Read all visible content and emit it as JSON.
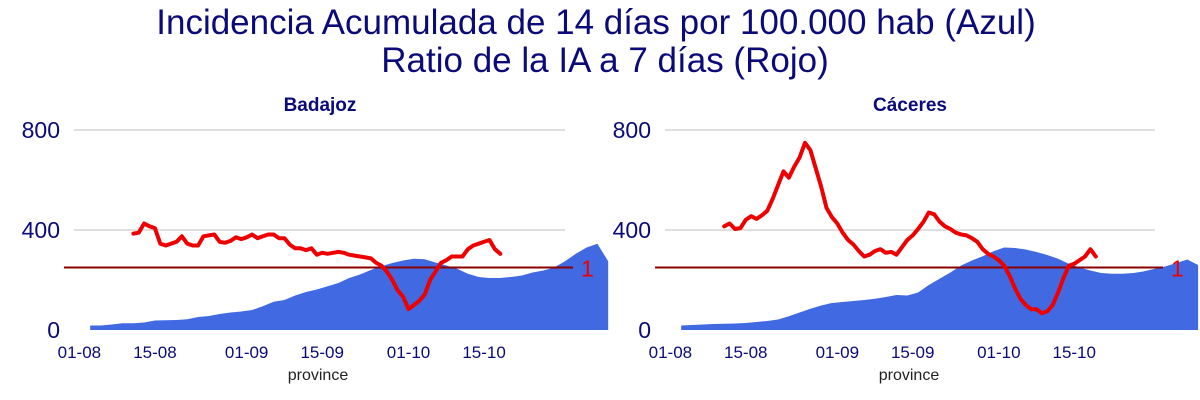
{
  "title_lines": [
    "Incidencia Acumulada de 14 días por 100.000 hab (Azul)",
    "Ratio de la IA a 7 días (Rojo)"
  ],
  "colors": {
    "title": "#0a0a78",
    "area": "#4169e1",
    "ratio": "#ee0000",
    "reference": "#8b0000",
    "grid": "#cccccc",
    "ref_label": "#ee0000"
  },
  "chart_data": [
    {
      "type": "area",
      "title": "Badajoz",
      "xlabel": "province",
      "x_start": "2020-08-03",
      "x_step_days": 2,
      "x_ticks": [
        {
          "date": "2020-08-01",
          "label": "01-08"
        },
        {
          "date": "2020-08-15",
          "label": "15-08"
        },
        {
          "date": "2020-09-01",
          "label": "01-09"
        },
        {
          "date": "2020-09-15",
          "label": "15-09"
        },
        {
          "date": "2020-10-01",
          "label": "01-10"
        },
        {
          "date": "2020-10-15",
          "label": "15-10"
        }
      ],
      "y_ticks": [
        0,
        400,
        800
      ],
      "ylim": [
        0,
        800
      ],
      "reference_line": {
        "value": 250,
        "label": "1"
      },
      "series": [
        {
          "name": "Incidencia Acumulada de 14 días por 100.000 hab",
          "kind": "area",
          "x_start": "2020-08-03",
          "values": [
            18,
            18,
            22,
            27,
            27,
            30,
            38,
            39,
            40,
            43,
            52,
            56,
            64,
            70,
            74,
            80,
            95,
            113,
            120,
            138,
            152,
            162,
            175,
            188,
            208,
            222,
            240,
            255,
            268,
            278,
            285,
            283,
            270,
            258,
            245,
            225,
            212,
            208,
            208,
            212,
            218,
            230,
            238,
            250,
            275,
            305,
            330,
            345,
            275
          ]
        },
        {
          "name": "Ratio de la IA a 7 días",
          "kind": "line",
          "x_start": "2020-08-11",
          "values": [
            1.37,
            1.38,
            1.48,
            1.45,
            1.43,
            1.26,
            1.24,
            1.26,
            1.28,
            1.34,
            1.26,
            1.24,
            1.24,
            1.34,
            1.35,
            1.36,
            1.28,
            1.27,
            1.29,
            1.33,
            1.31,
            1.33,
            1.36,
            1.32,
            1.34,
            1.36,
            1.36,
            1.32,
            1.32,
            1.25,
            1.21,
            1.21,
            1.19,
            1.21,
            1.14,
            1.16,
            1.15,
            1.16,
            1.17,
            1.16,
            1.14,
            1.13,
            1.12,
            1.11,
            1.1,
            1.05,
            1.02,
            0.98,
            0.94,
            0.89,
            0.86,
            0.8,
            0.82,
            0.84,
            0.87,
            0.94,
            0.98,
            1.05,
            1.08,
            1.12,
            1.12,
            1.12,
            1.2,
            1.24,
            1.26,
            1.28,
            1.3,
            1.2,
            1.15
          ]
        }
      ]
    },
    {
      "type": "area",
      "title": "Cáceres",
      "xlabel": "province",
      "x_start": "2020-08-03",
      "x_step_days": 2,
      "x_ticks": [
        {
          "date": "2020-08-01",
          "label": "01-08"
        },
        {
          "date": "2020-08-15",
          "label": "15-08"
        },
        {
          "date": "2020-09-01",
          "label": "01-09"
        },
        {
          "date": "2020-09-15",
          "label": "15-09"
        },
        {
          "date": "2020-10-01",
          "label": "01-10"
        },
        {
          "date": "2020-10-15",
          "label": "15-10"
        }
      ],
      "y_ticks": [
        0,
        400,
        800
      ],
      "ylim": [
        0,
        800
      ],
      "reference_line": {
        "value": 250,
        "label": "1"
      },
      "series": [
        {
          "name": "Incidencia Acumulada de 14 días por 100.000 hab",
          "kind": "area",
          "x_start": "2020-08-03",
          "values": [
            18,
            20,
            22,
            24,
            25,
            26,
            28,
            32,
            36,
            42,
            55,
            70,
            85,
            98,
            108,
            112,
            116,
            120,
            125,
            132,
            140,
            138,
            150,
            180,
            205,
            230,
            258,
            278,
            295,
            315,
            330,
            328,
            322,
            312,
            300,
            285,
            265,
            250,
            238,
            228,
            225,
            225,
            228,
            235,
            245,
            255,
            268,
            282,
            260
          ]
        },
        {
          "name": "Ratio de la IA a 7 días",
          "kind": "line",
          "x_start": "2020-08-11",
          "values": [
            1.45,
            1.48,
            1.42,
            1.43,
            1.52,
            1.56,
            1.53,
            1.57,
            1.62,
            1.75,
            1.9,
            2.05,
            1.98,
            2.1,
            2.2,
            2.36,
            2.28,
            2.08,
            1.88,
            1.65,
            1.55,
            1.48,
            1.38,
            1.3,
            1.25,
            1.18,
            1.12,
            1.14,
            1.18,
            1.2,
            1.16,
            1.17,
            1.14,
            1.22,
            1.3,
            1.35,
            1.42,
            1.5,
            1.6,
            1.58,
            1.5,
            1.45,
            1.42,
            1.38,
            1.36,
            1.35,
            1.32,
            1.28,
            1.2,
            1.15,
            1.12,
            1.08,
            1.02,
            0.96,
            0.9,
            0.85,
            0.82,
            0.8,
            0.8,
            0.78,
            0.79,
            0.82,
            0.88,
            0.95,
            1.02,
            1.04,
            1.08,
            1.12,
            1.2,
            1.12
          ]
        }
      ]
    }
  ]
}
